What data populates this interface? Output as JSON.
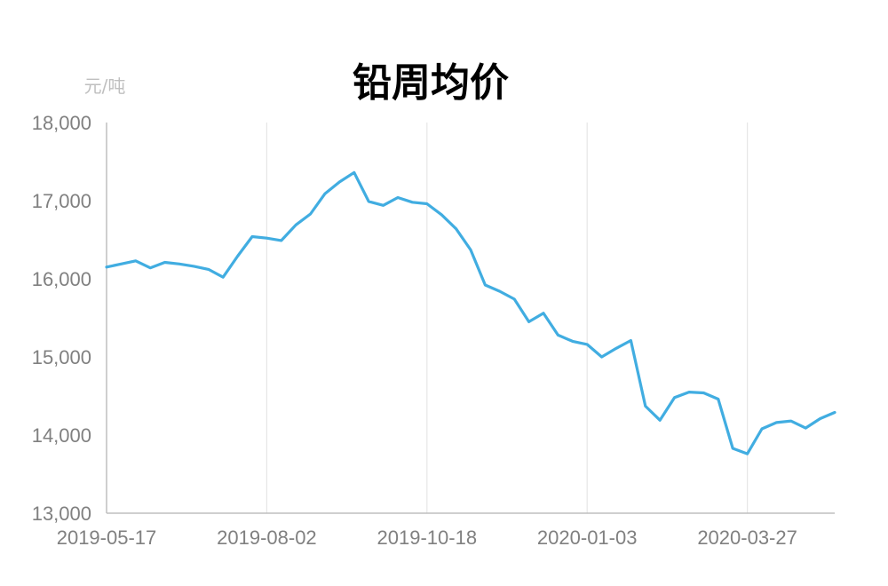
{
  "chart_data": {
    "type": "line",
    "title": "铅周均价",
    "unit": "元/吨",
    "xlabel": "",
    "ylabel": "",
    "ylim": [
      13000,
      18000
    ],
    "y_ticks": [
      13000,
      14000,
      15000,
      16000,
      17000,
      18000
    ],
    "y_tick_labels": [
      "13,000",
      "14,000",
      "15,000",
      "16,000",
      "17,000",
      "18,000"
    ],
    "x_tick_labels": [
      "2019-05-17",
      "2019-08-02",
      "2019-10-18",
      "2020-01-03",
      "2020-03-27"
    ],
    "x_tick_indices": [
      0,
      11,
      22,
      33,
      44
    ],
    "grid": "vertical",
    "legend": "none",
    "color": "#41ade1",
    "x": [
      "2019-05-17",
      "2019-05-24",
      "2019-05-31",
      "2019-06-07",
      "2019-06-14",
      "2019-06-21",
      "2019-06-28",
      "2019-07-05",
      "2019-07-12",
      "2019-07-19",
      "2019-07-26",
      "2019-08-02",
      "2019-08-09",
      "2019-08-16",
      "2019-08-23",
      "2019-08-30",
      "2019-09-06",
      "2019-09-13",
      "2019-09-20",
      "2019-09-27",
      "2019-10-04",
      "2019-10-11",
      "2019-10-18",
      "2019-10-25",
      "2019-11-01",
      "2019-11-08",
      "2019-11-15",
      "2019-11-22",
      "2019-11-29",
      "2019-12-06",
      "2019-12-13",
      "2019-12-20",
      "2019-12-27",
      "2020-01-03",
      "2020-01-10",
      "2020-01-17",
      "2020-01-24",
      "2020-01-31",
      "2020-02-07",
      "2020-02-14",
      "2020-02-21",
      "2020-02-28",
      "2020-03-06",
      "2020-03-13",
      "2020-03-20",
      "2020-03-27",
      "2020-04-03",
      "2020-04-10",
      "2020-04-17",
      "2020-04-24",
      "2020-05-01"
    ],
    "series": [
      {
        "values": [
          16150,
          16190,
          16230,
          16140,
          16210,
          16190,
          16160,
          16120,
          16020,
          16290,
          16540,
          16520,
          16490,
          16690,
          16830,
          17090,
          17240,
          17360,
          16990,
          16940,
          17040,
          16980,
          16960,
          16820,
          16640,
          16370,
          15920,
          15840,
          15740,
          15450,
          15560,
          15280,
          15200,
          15160,
          15000,
          15110,
          15210,
          14370,
          14190,
          14480,
          14550,
          14540,
          14460,
          13830,
          13760,
          14080,
          14160,
          14180,
          14090,
          14210,
          14290
        ]
      }
    ]
  }
}
